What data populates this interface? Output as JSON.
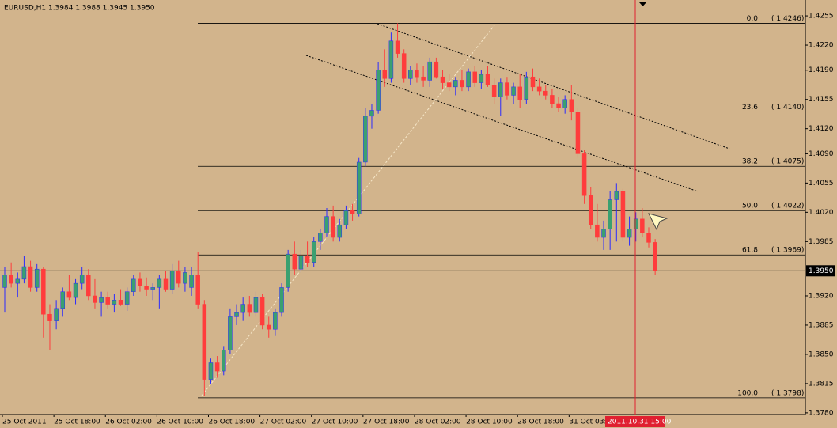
{
  "chart_data": {
    "type": "candlestick",
    "title": "EURUSD,H1  1.3984 1.3988 1.3945 1.3950",
    "categories": [
      "25 Oct 2011",
      null,
      null,
      null,
      null,
      null,
      null,
      null,
      "25 Oct 18:00",
      null,
      null,
      null,
      null,
      null,
      null,
      null,
      "26 Oct 02:00",
      null,
      null,
      null,
      null,
      null,
      null,
      null,
      "26 Oct 10:00",
      null,
      null,
      null,
      null,
      null,
      null,
      null,
      "26 Oct 18:00",
      null,
      null,
      null,
      null,
      null,
      null,
      null,
      "27 Oct 02:00",
      null,
      null,
      null,
      null,
      null,
      null,
      null,
      "27 Oct 10:00",
      null,
      null,
      null,
      null,
      null,
      null,
      null,
      "27 Oct 18:00",
      null,
      null,
      null,
      null,
      null,
      null,
      null,
      "28 Oct 02:00",
      null,
      null,
      null,
      null,
      null,
      null,
      null,
      "28 Oct 10:00",
      null,
      null,
      null,
      null,
      null,
      null,
      null,
      "28 Oct 18:00",
      null,
      null,
      null,
      null,
      null,
      null,
      null,
      "31 Oct 03:00",
      null,
      null,
      null,
      null,
      null,
      null,
      null,
      null,
      null,
      null,
      null,
      null,
      null
    ],
    "open": [
      1.393,
      1.3945,
      1.3935,
      1.394,
      1.3955,
      1.393,
      1.3952,
      1.3898,
      1.389,
      1.3905,
      1.3925,
      1.3918,
      1.3935,
      1.3945,
      1.392,
      1.3912,
      1.3918,
      1.391,
      1.3915,
      1.391,
      1.3925,
      1.394,
      1.3932,
      1.3928,
      1.393,
      1.394,
      1.3928,
      1.395,
      1.3935,
      1.393,
      1.3945,
      1.391,
      1.382,
      1.384,
      1.383,
      1.3855,
      1.3895,
      1.39,
      1.391,
      1.39,
      1.3918,
      1.3885,
      1.388,
      1.39,
      1.393,
      1.397,
      1.3952,
      1.3968,
      1.396,
      1.3985,
      1.3995,
      1.4015,
      1.399,
      1.4005,
      1.4022,
      1.4018,
      1.408,
      1.4135,
      1.4142,
      1.419,
      1.418,
      1.4225,
      1.421,
      1.418,
      1.419,
      1.4182,
      1.4178,
      1.42,
      1.4182,
      1.4175,
      1.417,
      1.4178,
      1.417,
      1.4188,
      1.4175,
      1.4185,
      1.4172,
      1.4158,
      1.4175,
      1.416,
      1.417,
      1.4155,
      1.4182,
      1.417,
      1.4165,
      1.416,
      1.415,
      1.4145,
      1.4155,
      1.414,
      1.409,
      1.404,
      1.4005,
      1.399,
      1.4,
      1.4035,
      1.4045,
      1.399,
      1.4,
      1.4012,
      1.3995,
      1.3984
    ],
    "high": [
      1.3955,
      1.396,
      1.3948,
      1.3968,
      1.3962,
      1.3958,
      1.3955,
      1.391,
      1.3915,
      1.393,
      1.3945,
      1.394,
      1.3955,
      1.3952,
      1.394,
      1.3925,
      1.3925,
      1.3922,
      1.3928,
      1.393,
      1.3945,
      1.3948,
      1.3942,
      1.3935,
      1.3945,
      1.395,
      1.3958,
      1.3962,
      1.3955,
      1.3955,
      1.3972,
      1.3915,
      1.3845,
      1.3848,
      1.386,
      1.3905,
      1.391,
      1.3918,
      1.392,
      1.3925,
      1.3922,
      1.3895,
      1.3905,
      1.3935,
      1.3975,
      1.3985,
      1.3975,
      1.3985,
      1.399,
      1.4,
      1.4025,
      1.4028,
      1.4012,
      1.4028,
      1.403,
      1.4085,
      1.4145,
      1.415,
      1.42,
      1.4215,
      1.4235,
      1.4246,
      1.4215,
      1.4195,
      1.4198,
      1.4195,
      1.4205,
      1.4205,
      1.419,
      1.4185,
      1.4182,
      1.419,
      1.4192,
      1.4195,
      1.419,
      1.4195,
      1.418,
      1.418,
      1.4182,
      1.4175,
      1.4185,
      1.4188,
      1.4192,
      1.418,
      1.4172,
      1.4168,
      1.4158,
      1.416,
      1.4172,
      1.4145,
      1.4095,
      1.405,
      1.403,
      1.401,
      1.4045,
      1.4055,
      1.4048,
      1.4015,
      1.402,
      1.4025,
      1.4002,
      1.3988
    ],
    "low": [
      1.39,
      1.393,
      1.3918,
      1.3935,
      1.3925,
      1.3925,
      1.387,
      1.3855,
      1.388,
      1.3895,
      1.3915,
      1.391,
      1.3928,
      1.3915,
      1.3905,
      1.3895,
      1.3905,
      1.39,
      1.3908,
      1.3902,
      1.392,
      1.3925,
      1.392,
      1.3915,
      1.3905,
      1.3925,
      1.3922,
      1.393,
      1.3925,
      1.392,
      1.3905,
      1.38,
      1.3815,
      1.3822,
      1.3825,
      1.385,
      1.3885,
      1.389,
      1.3895,
      1.3895,
      1.388,
      1.387,
      1.3872,
      1.3895,
      1.3925,
      1.3945,
      1.3948,
      1.3955,
      1.3955,
      1.3975,
      1.399,
      1.3985,
      1.3985,
      1.4,
      1.401,
      1.4015,
      1.4075,
      1.412,
      1.4138,
      1.417,
      1.4175,
      1.4205,
      1.4175,
      1.4172,
      1.4175,
      1.417,
      1.417,
      1.418,
      1.4168,
      1.4165,
      1.416,
      1.4165,
      1.4165,
      1.417,
      1.4168,
      1.417,
      1.415,
      1.4135,
      1.4155,
      1.415,
      1.4145,
      1.415,
      1.4165,
      1.416,
      1.4155,
      1.4145,
      1.414,
      1.4138,
      1.413,
      1.4085,
      1.403,
      1.4,
      1.3985,
      1.3975,
      1.3975,
      1.3985,
      1.3985,
      1.398,
      1.3985,
      1.399,
      1.3978,
      1.3945
    ],
    "close": [
      1.3945,
      1.3935,
      1.394,
      1.3955,
      1.393,
      1.3952,
      1.3898,
      1.389,
      1.3905,
      1.3925,
      1.3918,
      1.3935,
      1.3945,
      1.392,
      1.3912,
      1.3918,
      1.391,
      1.3915,
      1.391,
      1.3925,
      1.394,
      1.3932,
      1.3928,
      1.393,
      1.394,
      1.3928,
      1.395,
      1.3935,
      1.3948,
      1.3945,
      1.391,
      1.382,
      1.384,
      1.383,
      1.3855,
      1.3895,
      1.39,
      1.391,
      1.39,
      1.3918,
      1.3885,
      1.388,
      1.39,
      1.393,
      1.397,
      1.3952,
      1.3968,
      1.396,
      1.3985,
      1.3995,
      1.4015,
      1.399,
      1.4005,
      1.4022,
      1.4018,
      1.408,
      1.4135,
      1.4142,
      1.419,
      1.418,
      1.4225,
      1.421,
      1.418,
      1.419,
      1.4182,
      1.4178,
      1.42,
      1.4182,
      1.4175,
      1.417,
      1.4178,
      1.417,
      1.4188,
      1.4175,
      1.4185,
      1.4172,
      1.4158,
      1.4175,
      1.416,
      1.417,
      1.4155,
      1.4182,
      1.417,
      1.4165,
      1.416,
      1.415,
      1.4145,
      1.4155,
      1.414,
      1.409,
      1.404,
      1.4005,
      1.399,
      1.4,
      1.4035,
      1.4045,
      1.399,
      1.4,
      1.4012,
      1.3995,
      1.3984,
      1.395
    ],
    "up_color": "#3aa070",
    "up_wick_color": "#2a2aff",
    "down_color": "#ff3c3c",
    "ylim": [
      1.3778,
      1.4274
    ],
    "yticks": [
      1.4255,
      {
        "value": 1.422,
        "label": "1.4220"
      },
      {
        "value": 1.419,
        "label": "1.4190"
      },
      1.4155,
      {
        "value": 1.412,
        "label": "1.4120"
      },
      {
        "value": 1.409,
        "label": "1.4090"
      },
      1.4055,
      {
        "value": 1.402,
        "label": "1.4020"
      },
      1.3985,
      {
        "value": 1.392,
        "label": "1.3920"
      },
      1.3885,
      {
        "value": 1.385,
        "label": "1.3850"
      },
      1.3815,
      {
        "value": 1.378,
        "label": "1.3780"
      }
    ],
    "bid": {
      "value": 1.395,
      "label": "1.3950"
    },
    "fib_levels": [
      {
        "level": "0.0",
        "value": 1.4246,
        "label": "( 1.4246)"
      },
      {
        "level": "23.6",
        "value": 1.414,
        "label": "( 1.4140)"
      },
      {
        "level": "38.2",
        "value": 1.4075,
        "label": "( 1.4075)"
      },
      {
        "level": "50.0",
        "value": 1.4022,
        "label": "( 1.4022)"
      },
      {
        "level": "61.8",
        "value": 1.3969,
        "label": "( 1.3969)"
      },
      {
        "level": "100.0",
        "value": 1.3798,
        "label": "( 1.3798)"
      }
    ],
    "crosshair_label": "2011.10.31 15:00"
  }
}
